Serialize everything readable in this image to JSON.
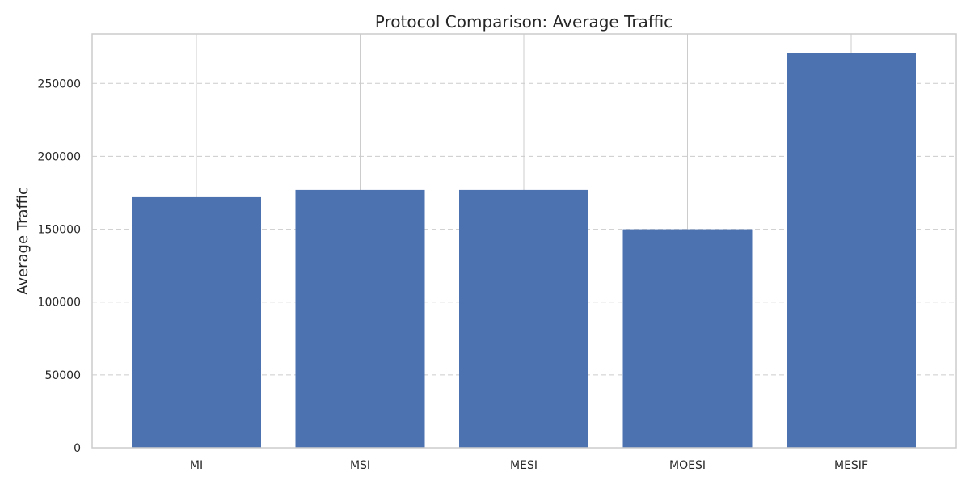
{
  "chart_data": {
    "type": "bar",
    "title": "Protocol Comparison: Average Traffic",
    "xlabel": "",
    "ylabel": "Average Traffic",
    "categories": [
      "MI",
      "MSI",
      "MESI",
      "MOESI",
      "MESIF"
    ],
    "values": [
      172000,
      177000,
      177000,
      150000,
      271000
    ],
    "ylim": [
      0,
      284000
    ],
    "yticks": [
      0,
      50000,
      100000,
      150000,
      200000,
      250000
    ],
    "ytick_labels": [
      "0",
      "50000",
      "100000",
      "150000",
      "200000",
      "250000"
    ],
    "grid": "y-dashed, x-solid",
    "legend": "none",
    "bar_color": "#4c72b0",
    "grid_color": "#cccccc",
    "axis_color": "#cccccc"
  }
}
